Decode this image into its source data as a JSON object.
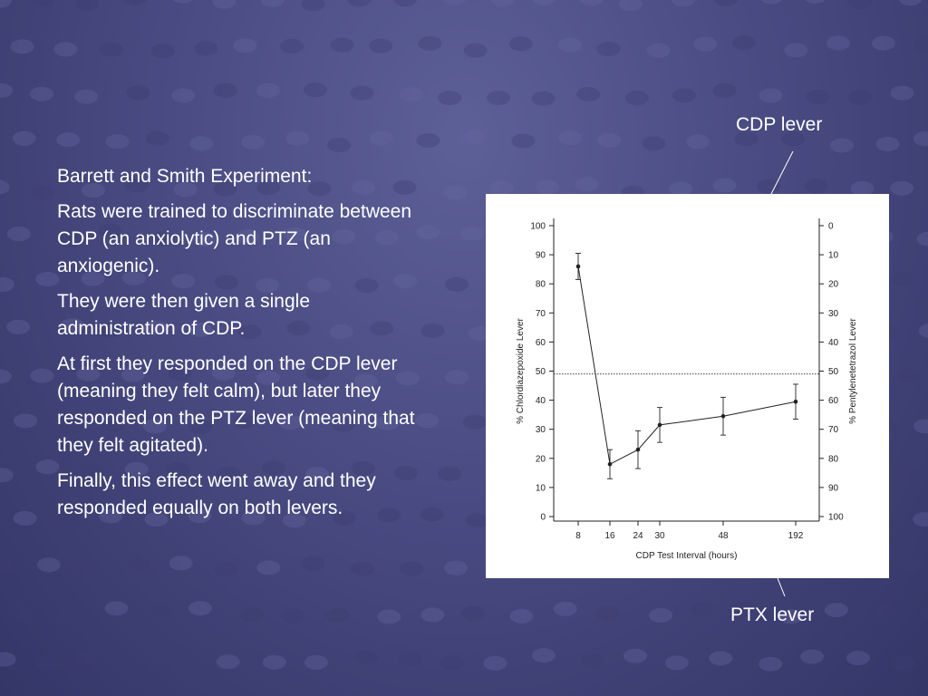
{
  "slide": {
    "paragraphs": [
      "Barrett and Smith Experiment:",
      "Rats were trained to discriminate between CDP (an anxiolytic) and PTZ (an anxiogenic).",
      "They were then given a single administration of CDP.",
      "At first they responded on the CDP lever (meaning they felt calm), but later they responded on the PTZ lever (meaning that they felt agitated).",
      "Finally, this effect went away and they responded equally on both levers."
    ],
    "callout_cdp": "CDP lever",
    "callout_ptx": "PTX lever"
  },
  "colors": {
    "background": "#494b82",
    "text": "#ffffff",
    "chart_ink": "#222222"
  },
  "chart_data": {
    "type": "line",
    "title": "",
    "xlabel": "CDP Test Interval (hours)",
    "ylabel": "% Chlordiazepoxide Lever",
    "ylabel_right": "% Pentylenetetrazol Lever",
    "x_ticks": [
      "8",
      "16",
      "24",
      "30",
      "48",
      "192"
    ],
    "y_ticks": [
      "0",
      "10",
      "20",
      "30",
      "40",
      "50",
      "60",
      "70",
      "80",
      "90",
      "100"
    ],
    "y_right_ticks": [
      "100",
      "90",
      "80",
      "70",
      "60",
      "50",
      "40",
      "30",
      "20",
      "10",
      "0"
    ],
    "ylim": [
      0,
      100
    ],
    "y_right_lim": [
      100,
      0
    ],
    "x_scale": "nonlinear",
    "reference_line": 49,
    "grid": false,
    "legend": "none",
    "series": [
      {
        "x": [
          8,
          16,
          24,
          30,
          48,
          192
        ],
        "y": [
          86,
          18,
          23,
          31.5,
          34.5,
          39.5
        ],
        "error": [
          4.5,
          5,
          6.5,
          6,
          6.5,
          6
        ]
      }
    ]
  }
}
